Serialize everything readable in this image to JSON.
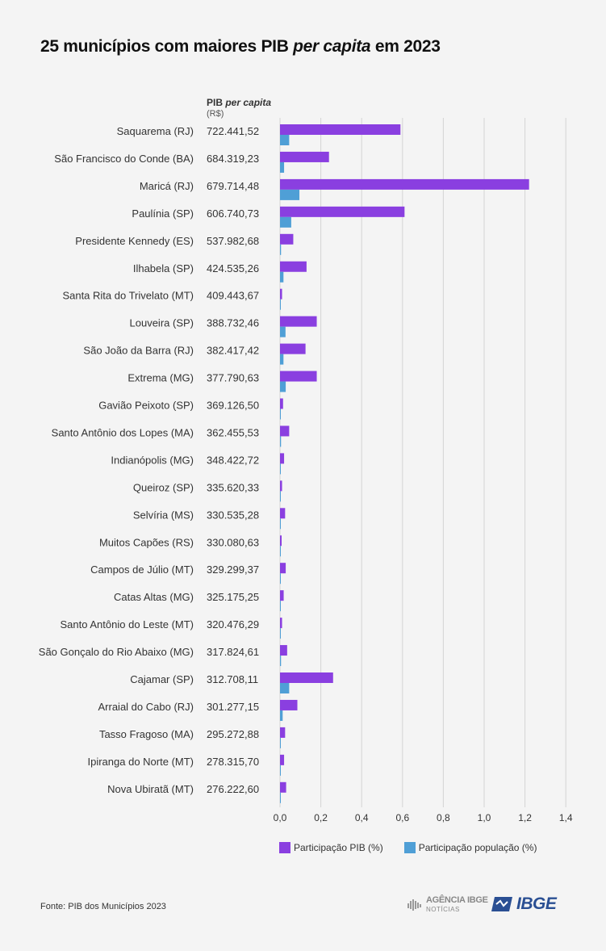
{
  "title": {
    "prefix": "25 municípios com maiores PIB ",
    "italic": "per capita",
    "suffix": " em 2023"
  },
  "column_header": {
    "label": "PIB ",
    "label_italic": "per capita",
    "unit": "(R$)"
  },
  "colors": {
    "pib": "#8a3fe0",
    "populacao": "#4f9fd6",
    "grid": "#d4d4d4",
    "text": "#333333"
  },
  "chart_data": {
    "type": "bar",
    "orientation": "horizontal",
    "xlim": [
      0,
      1.4
    ],
    "xticks": [
      "0,0",
      "0,2",
      "0,4",
      "0,6",
      "0,8",
      "1,0",
      "1,2",
      "1,4"
    ],
    "grid": true,
    "legend_position": "bottom",
    "categories": [
      "Saquarema (RJ)",
      "São Francisco do Conde (BA)",
      "Maricá (RJ)",
      "Paulínia (SP)",
      "Presidente Kennedy (ES)",
      "Ilhabela (SP)",
      "Santa Rita do Trivelato (MT)",
      "Louveira (SP)",
      "São João da Barra (RJ)",
      "Extrema (MG)",
      "Gavião Peixoto (SP)",
      "Santo Antônio dos Lopes (MA)",
      "Indianópolis (MG)",
      "Queiroz (SP)",
      "Selvíria (MS)",
      "Muitos Capões (RS)",
      "Campos de Júlio (MT)",
      "Catas Altas (MG)",
      "Santo Antônio do Leste (MT)",
      "São Gonçalo do Rio Abaixo (MG)",
      "Cajamar (SP)",
      "Arraial do Cabo (RJ)",
      "Tasso Fragoso (MA)",
      "Ipiranga do Norte (MT)",
      "Nova Ubiratã (MT)"
    ],
    "pib_per_capita": [
      "722.441,52",
      "684.319,23",
      "679.714,48",
      "606.740,73",
      "537.982,68",
      "424.535,26",
      "409.443,67",
      "388.732,46",
      "382.417,42",
      "377.790,63",
      "369.126,50",
      "362.455,53",
      "348.422,72",
      "335.620,33",
      "330.535,28",
      "330.080,63",
      "329.299,37",
      "325.175,25",
      "320.476,29",
      "317.824,61",
      "312.708,11",
      "301.277,15",
      "295.272,88",
      "278.315,70",
      "276.222,60"
    ],
    "series": [
      {
        "name": "Participação PIB (%)",
        "values": [
          0.59,
          0.24,
          1.22,
          0.61,
          0.065,
          0.13,
          0.01,
          0.18,
          0.125,
          0.18,
          0.015,
          0.045,
          0.02,
          0.01,
          0.025,
          0.008,
          0.028,
          0.018,
          0.01,
          0.035,
          0.26,
          0.085,
          0.025,
          0.02,
          0.03
        ]
      },
      {
        "name": "Participação população (%)",
        "values": [
          0.045,
          0.02,
          0.095,
          0.055,
          0.005,
          0.017,
          0.001,
          0.027,
          0.017,
          0.028,
          0.003,
          0.005,
          0.003,
          0.002,
          0.003,
          0.002,
          0.002,
          0.002,
          0.002,
          0.005,
          0.045,
          0.013,
          0.003,
          0.003,
          0.004
        ]
      }
    ]
  },
  "footer": {
    "source": "Fonte:  PIB dos Municípios 2023"
  },
  "branding": {
    "agencia_title": "AGÊNCIA IBGE",
    "agencia_sub": "NOTÍCIAS",
    "ibge": "IBGE"
  }
}
